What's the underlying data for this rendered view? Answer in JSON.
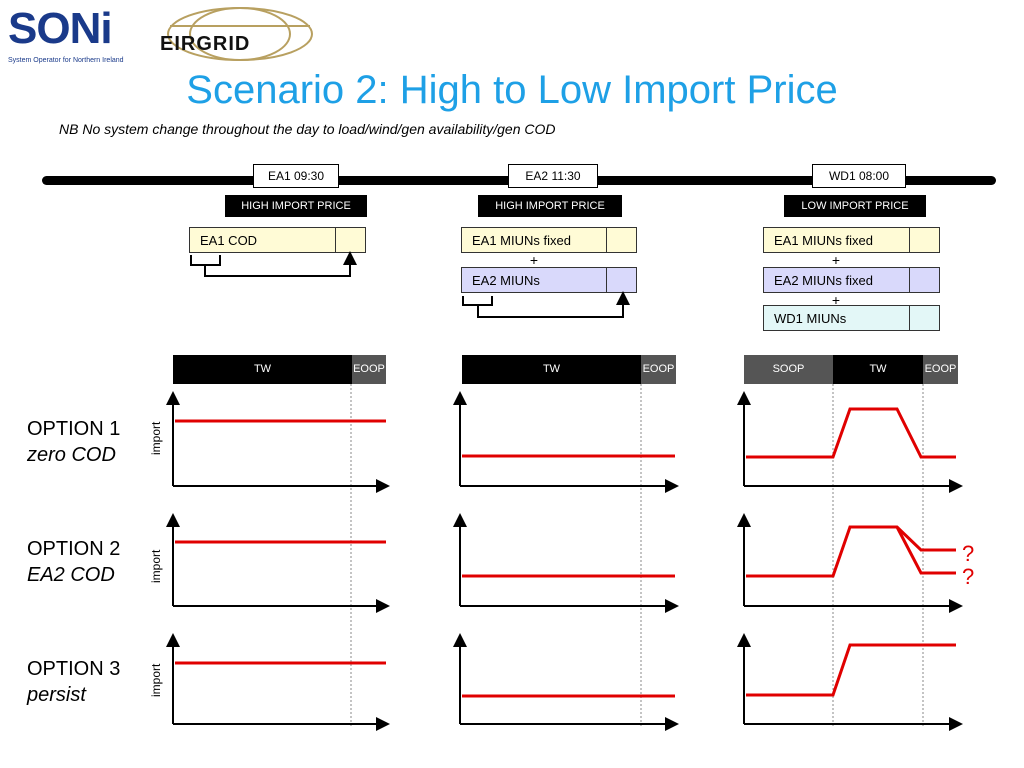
{
  "logos": {
    "soni": "SONi",
    "soni_sub": "System Operator for Northern Ireland",
    "eirgrid": "EIRGRID"
  },
  "title": "Scenario 2: High to Low Import Price",
  "subtitle": "NB No system change throughout the day to load/wind/gen availability/gen COD",
  "columns": [
    {
      "time_label": "EA1  09:30",
      "price_label": "HIGH  IMPORT PRICE",
      "stack": [
        "EA1 COD"
      ],
      "bars": [
        "TW",
        "EOOP"
      ]
    },
    {
      "time_label": "EA2   11:30",
      "price_label": "HIGH  IMPORT PRICE",
      "stack": [
        "EA1 MIUNs   fixed",
        "EA2 MIUNs"
      ],
      "bars": [
        "TW",
        "EOOP"
      ]
    },
    {
      "time_label": "WD1  08:00",
      "price_label": "LOW  IMPORT PRICE",
      "stack": [
        "EA1 MIUNs fixed",
        "EA2 MIUNs fixed",
        "WD1 MIUNs"
      ],
      "bars": [
        "SOOP",
        "TW",
        "EOOP"
      ]
    }
  ],
  "plus_sign": "+",
  "options": [
    {
      "title": "OPTION 1",
      "subtitle": "zero COD"
    },
    {
      "title": "OPTION 2",
      "subtitle": "EA2 COD"
    },
    {
      "title": "OPTION 3",
      "subtitle": "persist"
    }
  ],
  "axis_label": "import",
  "question_mark": "?",
  "colors": {
    "title": "#1ea0e6",
    "line": "#e00000",
    "stack_yellow": "#fffbd6",
    "stack_lavender": "#d9d9fb",
    "stack_cyan": "#e3f7f7",
    "bar_dark": "#000000",
    "bar_grey": "#555555"
  }
}
